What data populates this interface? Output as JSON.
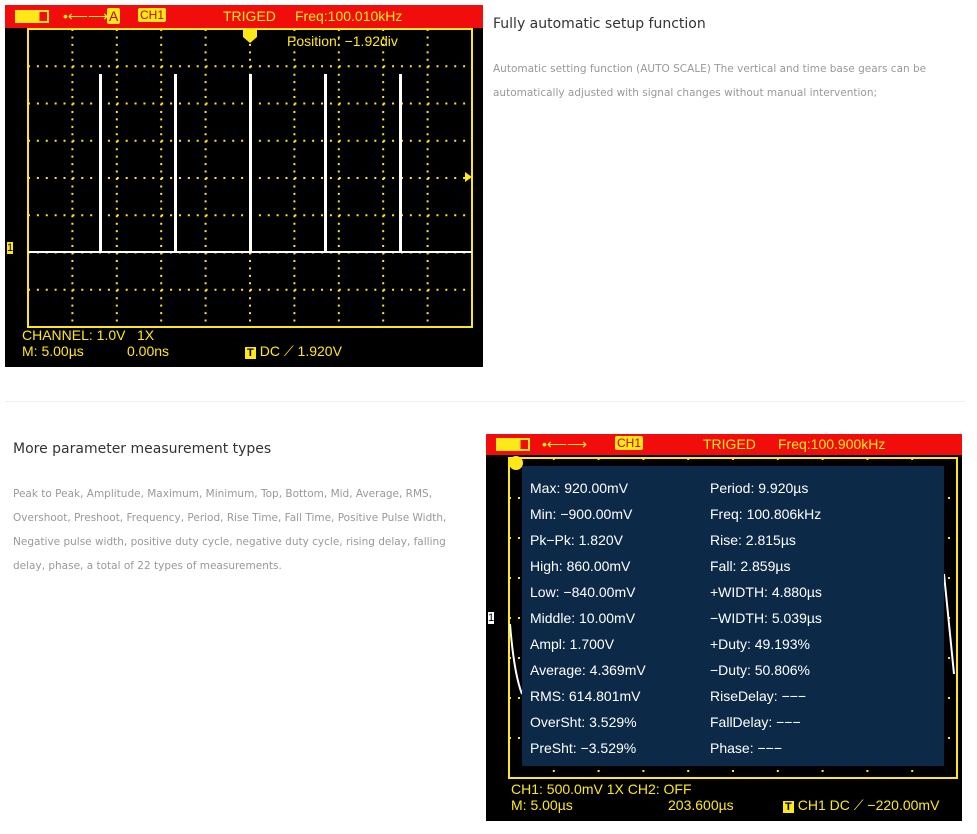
{
  "section1": {
    "title": "Fully automatic setup function",
    "description": "Automatic setting function (AUTO SCALE) The vertical and time base gears can be automatically adjusted with signal changes without manual intervention;",
    "scope": {
      "mode_badge": "A",
      "channel": "CH1",
      "status": "TRIGED",
      "freq": "Freq:100.010kHz",
      "position": "Position: −1.92div",
      "channel_info": "CHANNEL: 1.0V",
      "probe": "1X",
      "timebase": "M: 5.00µs",
      "offset": "0.00ns",
      "trigger_badge": "T",
      "trigger": "DC ⟋ 1.920V",
      "marker": "1"
    }
  },
  "section2": {
    "title": "More parameter measurement types",
    "description": "Peak to Peak, Amplitude, Maximum, Minimum, Top, Bottom, Mid, Average, RMS, Overshoot, Preshoot, Frequency, Period, Rise Time, Fall Time, Positive Pulse Width, Negative pulse width, positive duty cycle, negative duty cycle, rising delay, falling delay, phase, a total of 22 types of measurements.",
    "scope": {
      "channel": "CH1",
      "status": "TRIGED",
      "freq": "Freq:100.900kHz",
      "ch_info": "CH1: 500.0mV 1X  CH2: OFF",
      "timebase": "M: 5.00µs",
      "offset": "203.600µs",
      "trigger_badge": "T",
      "trigger": "CH1 DC ⟋ −220.00mV",
      "marker": "1",
      "left_measurements": [
        "Max: 920.00mV",
        "Min: −900.00mV",
        "Pk−Pk: 1.820V",
        "High: 860.00mV",
        "Low: −840.00mV",
        "Middle: 10.00mV",
        "Ampl: 1.700V",
        "Average: 4.369mV",
        "RMS: 614.801mV",
        "OverSht: 3.529%",
        "PreSht: −3.529%"
      ],
      "right_measurements": [
        "Period: 9.920µs",
        "Freq: 100.806kHz",
        "Rise: 2.815µs",
        "Fall: 2.859µs",
        "+WIDTH: 4.880µs",
        "−WIDTH: 5.039µs",
        "+Duty: 49.193%",
        "−Duty: 50.806%",
        "RiseDelay: −−−",
        "FallDelay: −−−",
        "Phase: −−−"
      ]
    }
  },
  "colors": {
    "bar": "#f20d0d",
    "trace": "#ffe81a",
    "panel": "#0c2a47"
  }
}
